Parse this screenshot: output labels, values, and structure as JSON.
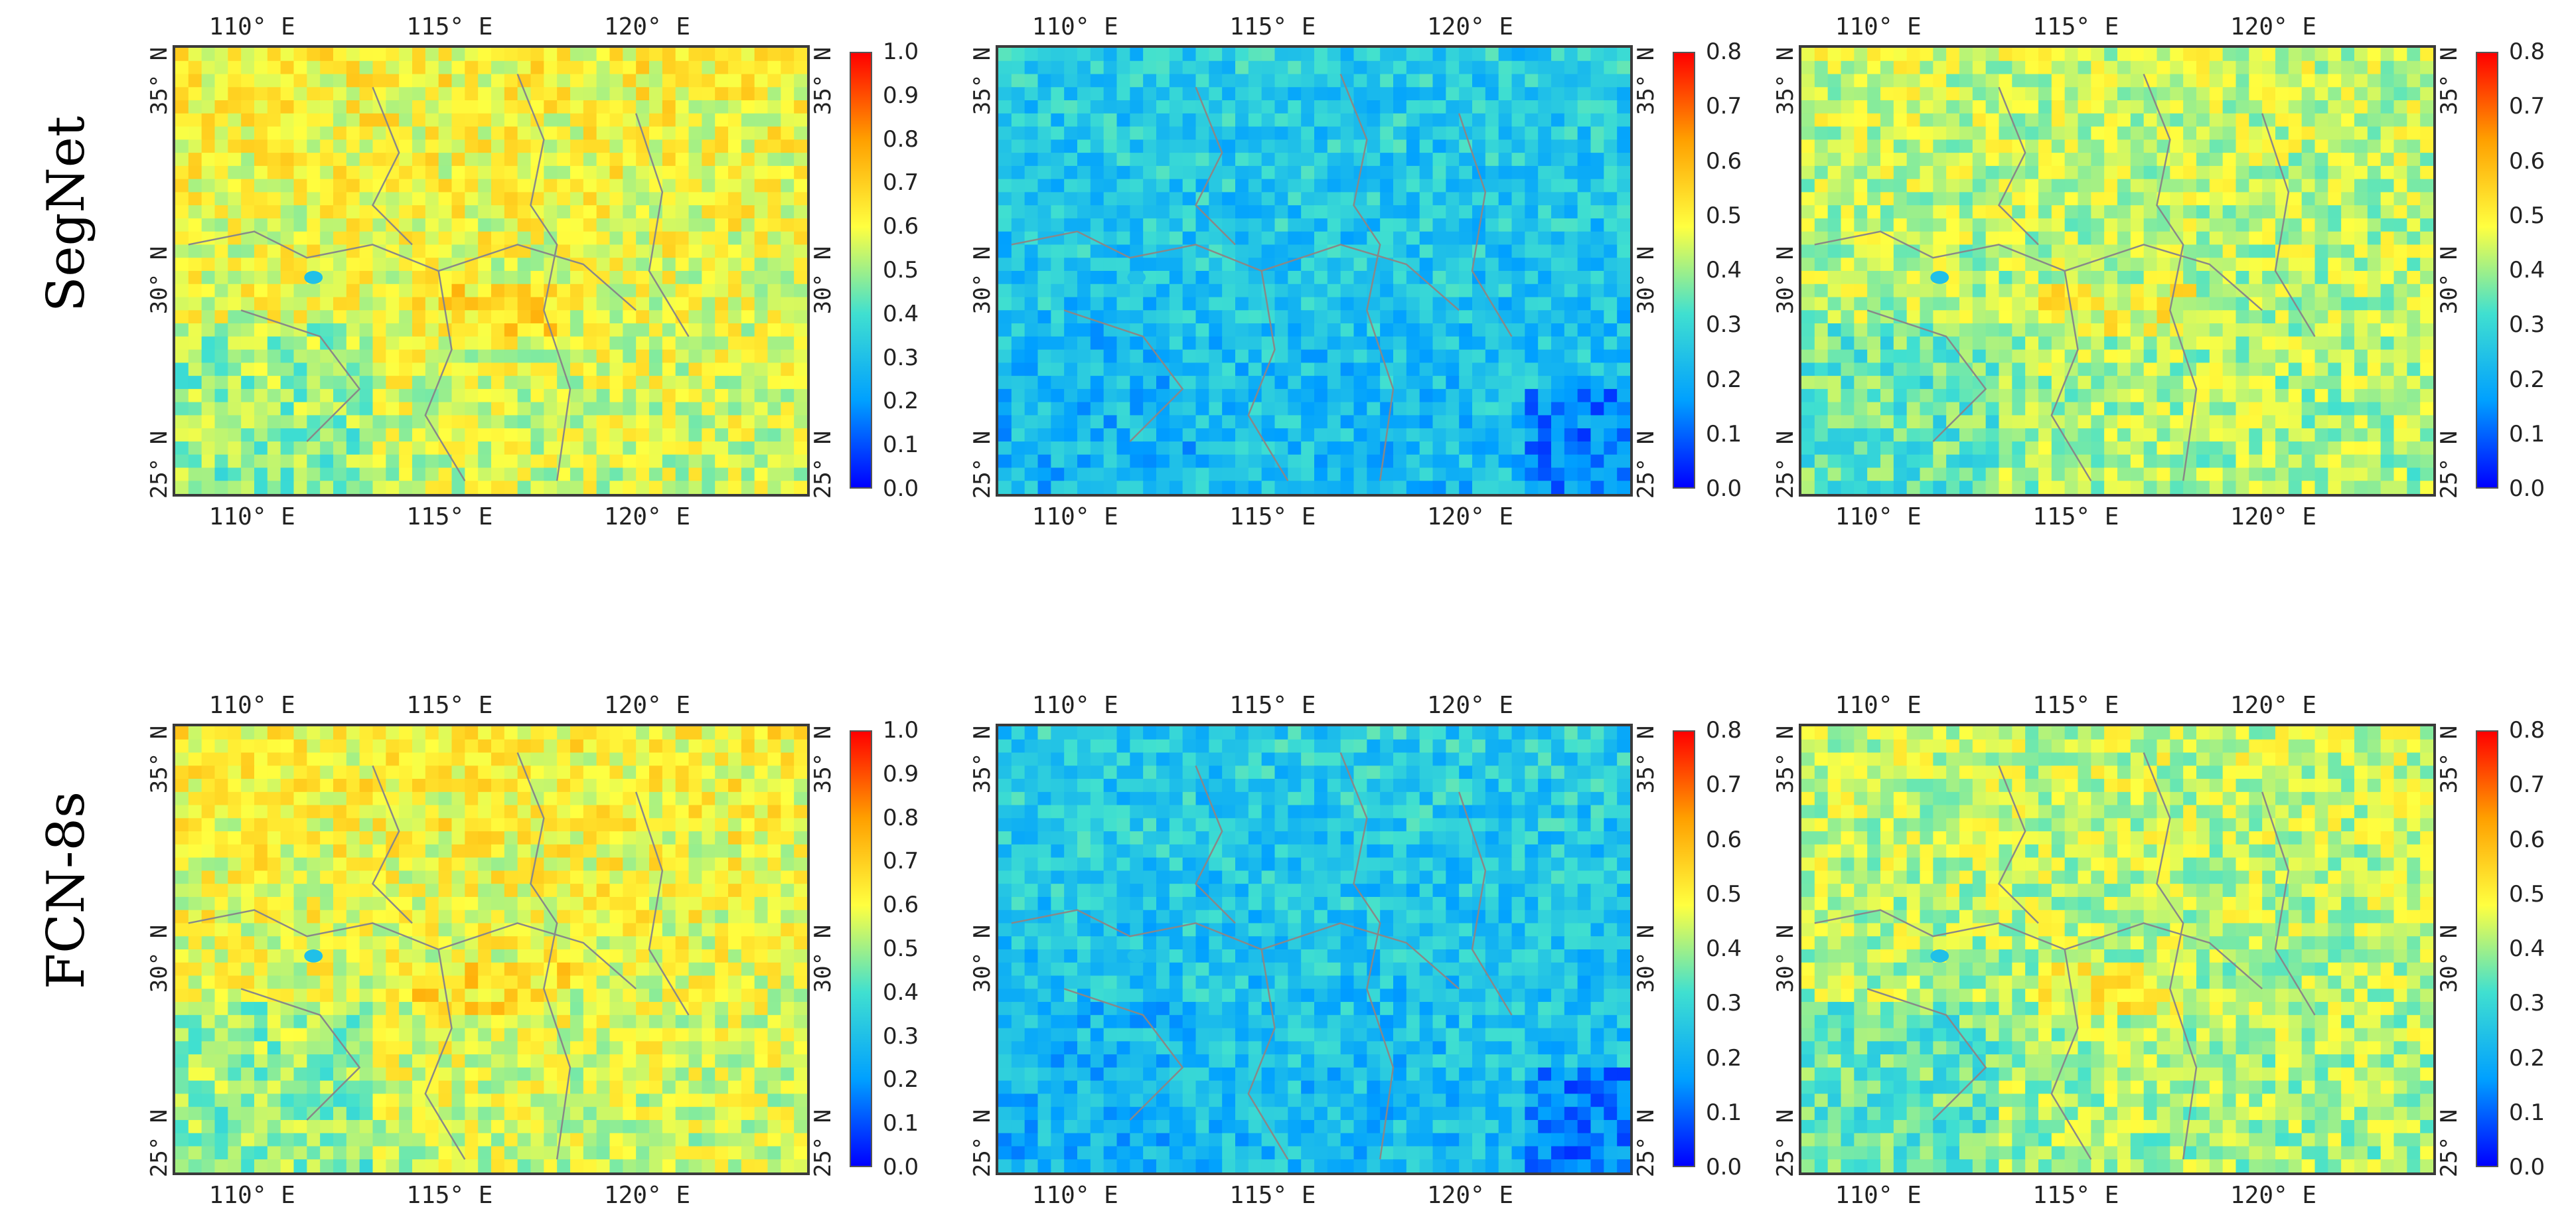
{
  "rows": [
    {
      "label": "SegNet"
    },
    {
      "label": "FCN-8s"
    }
  ],
  "longitude_ticks": [
    "110° E",
    "115° E",
    "120° E"
  ],
  "latitude_ticks": [
    "35° N",
    "30° N",
    "25° N"
  ],
  "panels": [
    {
      "row": 0,
      "col": 0,
      "colorbar": [
        "1.0",
        "0.9",
        "0.8",
        "0.7",
        "0.6",
        "0.5",
        "0.4",
        "0.3",
        "0.2",
        "0.1",
        "0.0"
      ],
      "field": "warm",
      "seed": 11
    },
    {
      "row": 0,
      "col": 1,
      "colorbar": [
        "0.8",
        "0.7",
        "0.6",
        "0.5",
        "0.4",
        "0.3",
        "0.2",
        "0.1",
        "0.0"
      ],
      "field": "cool",
      "seed": 23
    },
    {
      "row": 0,
      "col": 2,
      "colorbar": [
        "0.8",
        "0.7",
        "0.6",
        "0.5",
        "0.4",
        "0.3",
        "0.2",
        "0.1",
        "0.0"
      ],
      "field": "mild",
      "seed": 37
    },
    {
      "row": 1,
      "col": 0,
      "colorbar": [
        "1.0",
        "0.9",
        "0.8",
        "0.7",
        "0.6",
        "0.5",
        "0.4",
        "0.3",
        "0.2",
        "0.1",
        "0.0"
      ],
      "field": "warm",
      "seed": 41
    },
    {
      "row": 1,
      "col": 1,
      "colorbar": [
        "0.8",
        "0.7",
        "0.6",
        "0.5",
        "0.4",
        "0.3",
        "0.2",
        "0.1",
        "0.0"
      ],
      "field": "cool",
      "seed": 53
    },
    {
      "row": 1,
      "col": 2,
      "colorbar": [
        "0.8",
        "0.7",
        "0.6",
        "0.5",
        "0.4",
        "0.3",
        "0.2",
        "0.1",
        "0.0"
      ],
      "field": "mild",
      "seed": 67
    }
  ],
  "colors": {
    "colormap": [
      "#0000ff",
      "#00a0ff",
      "#40e0d0",
      "#ffff40",
      "#ffa000",
      "#ff0000"
    ]
  }
}
